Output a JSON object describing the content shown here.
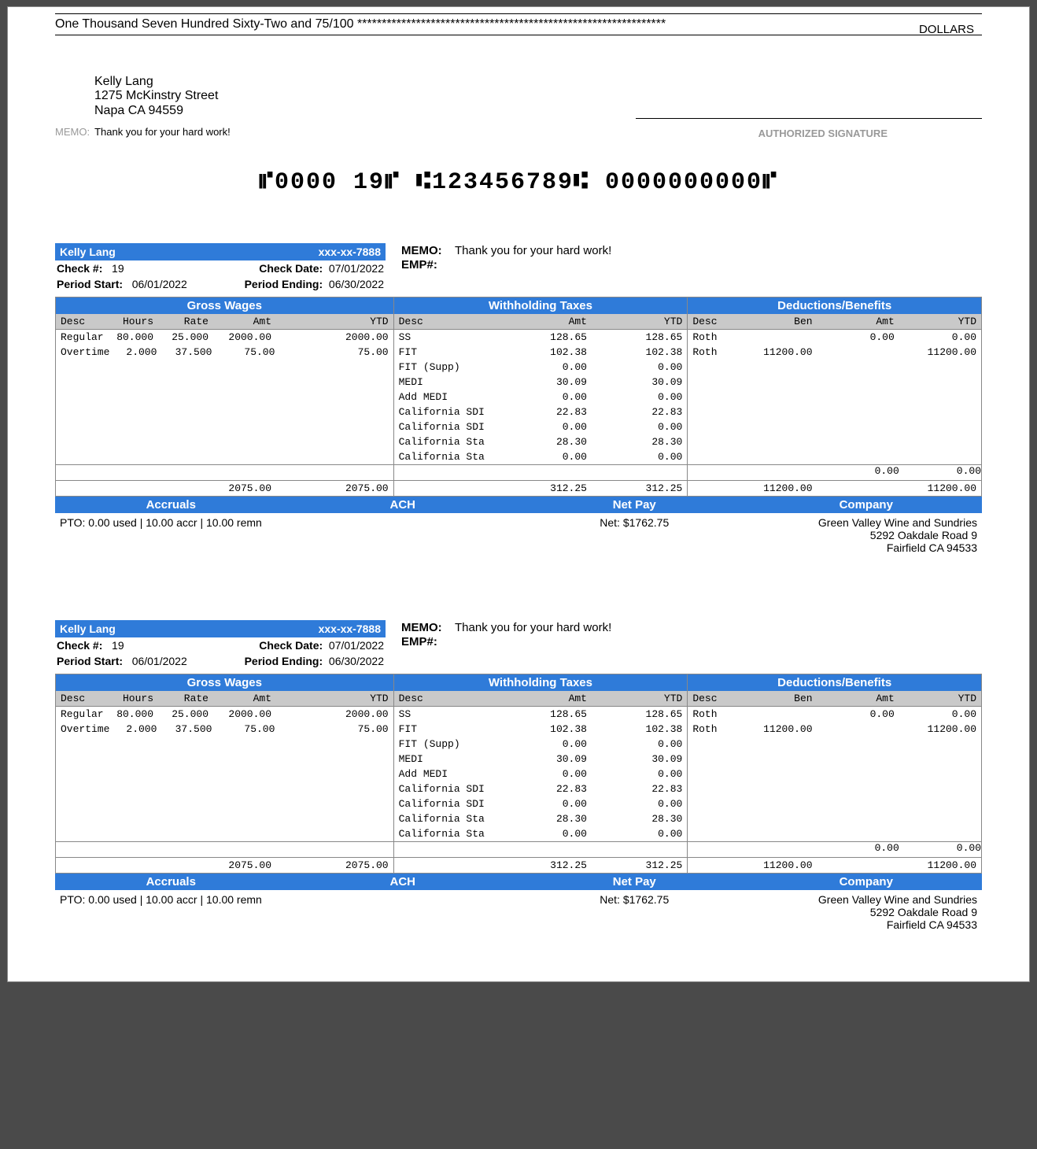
{
  "check": {
    "amount_words": "One Thousand Seven Hundred Sixty-Two and 75/100 ***************************************************************",
    "dollars_label": "DOLLARS",
    "payee_name": "Kelly  Lang",
    "payee_addr1": "1275 McKinstry Street",
    "payee_addr2": "Napa CA 94559",
    "memo_label": "MEMO:",
    "memo_text": "Thank you for your hard work!",
    "sig_label": "AUTHORIZED SIGNATURE",
    "micr": "⑈0000 19⑈  ⑆123456789⑆  0000000000⑈"
  },
  "stub": {
    "name": "Kelly  Lang",
    "ssn": "xxx-xx-7888",
    "check_no_label": "Check #:",
    "check_no": "19",
    "check_date_label": "Check Date:",
    "check_date": "07/01/2022",
    "period_start_label": "Period Start:",
    "period_start": "06/01/2022",
    "period_end_label": "Period Ending:",
    "period_end": "06/30/2022",
    "memo_label": "MEMO:",
    "memo_text": "Thank you for your hard work!",
    "emp_label": "EMP#:",
    "gross_title": "Gross Wages",
    "tax_title": "Withholding Taxes",
    "ded_title": "Deductions/Benefits",
    "gross_hdr": {
      "desc": "Desc",
      "hours": "Hours",
      "rate": "Rate",
      "amt": "Amt",
      "ytd": "YTD"
    },
    "gross_rows": [
      {
        "desc": "Regular",
        "hours": "80.000",
        "rate": "25.000",
        "amt": "2000.00",
        "ytd": "2000.00"
      },
      {
        "desc": "Overtime",
        "hours": "2.000",
        "rate": "37.500",
        "amt": "75.00",
        "ytd": "75.00"
      }
    ],
    "gross_tot": {
      "amt": "2075.00",
      "ytd": "2075.00"
    },
    "tax_hdr": {
      "desc": "Desc",
      "amt": "Amt",
      "ytd": "YTD"
    },
    "tax_rows": [
      {
        "desc": "SS",
        "amt": "128.65",
        "ytd": "128.65"
      },
      {
        "desc": "FIT",
        "amt": "102.38",
        "ytd": "102.38"
      },
      {
        "desc": "FIT (Supp)",
        "amt": "0.00",
        "ytd": "0.00"
      },
      {
        "desc": "MEDI",
        "amt": "30.09",
        "ytd": "30.09"
      },
      {
        "desc": "Add MEDI",
        "amt": "0.00",
        "ytd": "0.00"
      },
      {
        "desc": "California SDI",
        "amt": "22.83",
        "ytd": "22.83"
      },
      {
        "desc": "California SDI",
        "amt": "0.00",
        "ytd": "0.00"
      },
      {
        "desc": "California Sta",
        "amt": "28.30",
        "ytd": "28.30"
      },
      {
        "desc": "California Sta",
        "amt": "0.00",
        "ytd": "0.00"
      }
    ],
    "tax_tot": {
      "amt": "312.25",
      "ytd": "312.25"
    },
    "ded_hdr": {
      "desc": "Desc",
      "ben": "Ben",
      "amt": "Amt",
      "ytd": "YTD"
    },
    "ded_rows": [
      {
        "desc": "Roth",
        "ben": "",
        "amt": "0.00",
        "ytd": "0.00"
      },
      {
        "desc": "Roth",
        "ben": "11200.00",
        "amt": "",
        "ytd": "11200.00"
      }
    ],
    "ded_sub": {
      "amt": "0.00",
      "ytd": "0.00"
    },
    "ded_tot": {
      "ben": "11200.00",
      "ytd": "11200.00"
    },
    "accruals_title": "Accruals",
    "accruals_text": "PTO: 0.00 used | 10.00 accr | 10.00 remn",
    "ach_title": "ACH",
    "netpay_title": "Net Pay",
    "netpay_text": "Net: $1762.75",
    "company_title": "Company",
    "company_line1": "Green Valley Wine and Sundries",
    "company_line2": "5292 Oakdale Road 9",
    "company_line3": "Fairfield CA 94533"
  }
}
